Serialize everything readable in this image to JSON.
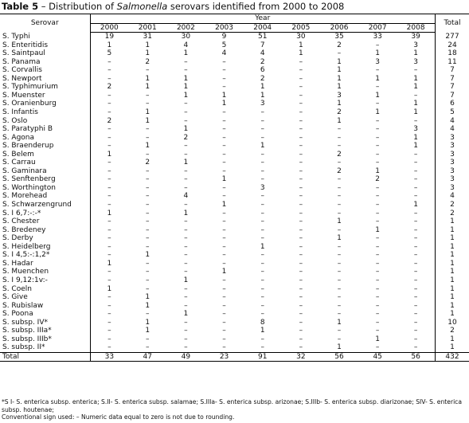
{
  "title": {
    "label": "Table 5",
    "before": "– Distribution of ",
    "italic": "Salmonella",
    "after": " serovars identified from 2000 to 2008"
  },
  "table": {
    "serovar_header": "Serovar",
    "year_header": "Year",
    "total_header": "Total",
    "years": [
      "2000",
      "2001",
      "2002",
      "2003",
      "2004",
      "2005",
      "2006",
      "2007",
      "2008"
    ],
    "rows": [
      [
        "S. Typhi",
        "19",
        "31",
        "30",
        "9",
        "51",
        "30",
        "35",
        "33",
        "39",
        "277"
      ],
      [
        "S. Enteritidis",
        "1",
        "1",
        "4",
        "5",
        "7",
        "1",
        "2",
        "–",
        "3",
        "24"
      ],
      [
        "S. Saintpaul",
        "5",
        "1",
        "1",
        "4",
        "4",
        "1",
        "–",
        "1",
        "1",
        "18"
      ],
      [
        "S. Panama",
        "–",
        "2",
        "–",
        "–",
        "2",
        "–",
        "1",
        "3",
        "3",
        "11"
      ],
      [
        "S. Corvallis",
        "–",
        "–",
        "–",
        "–",
        "6",
        "–",
        "1",
        "–",
        "–",
        "7"
      ],
      [
        "S. Newport",
        "–",
        "1",
        "1",
        "–",
        "2",
        "–",
        "1",
        "1",
        "1",
        "7"
      ],
      [
        "S. Typhimurium",
        "2",
        "1",
        "1",
        "–",
        "1",
        "–",
        "1",
        "–",
        "1",
        "7"
      ],
      [
        "S. Muenster",
        "–",
        "–",
        "1",
        "1",
        "1",
        "–",
        "3",
        "1",
        "–",
        "7"
      ],
      [
        "S. Oranienburg",
        "–",
        "–",
        "–",
        "1",
        "3",
        "–",
        "1",
        "–",
        "1",
        "6"
      ],
      [
        "S. Infantis",
        "–",
        "1",
        "–",
        "–",
        "–",
        "–",
        "2",
        "1",
        "1",
        "5"
      ],
      [
        "S. Oslo",
        "2",
        "1",
        "–",
        "–",
        "–",
        "–",
        "1",
        "–",
        "–",
        "4"
      ],
      [
        "S. Paratyphi B",
        "–",
        "–",
        "1",
        "–",
        "–",
        "–",
        "–",
        "–",
        "3",
        "4"
      ],
      [
        "S. Agona",
        "–",
        "–",
        "2",
        "–",
        "–",
        "–",
        "–",
        "–",
        "1",
        "3"
      ],
      [
        "S. Braenderup",
        "–",
        "1",
        "–",
        "–",
        "1",
        "–",
        "–",
        "–",
        "1",
        "3"
      ],
      [
        "S. Belem",
        "1",
        "–",
        "–",
        "–",
        "–",
        "–",
        "2",
        "–",
        "–",
        "3"
      ],
      [
        "S. Carrau",
        "–",
        "2",
        "1",
        "–",
        "–",
        "–",
        "–",
        "–",
        "–",
        "3"
      ],
      [
        "S. Gaminara",
        "–",
        "–",
        "–",
        "–",
        "–",
        "–",
        "2",
        "1",
        "–",
        "3"
      ],
      [
        "S. Senftenberg",
        "–",
        "–",
        "–",
        "1",
        "–",
        "–",
        "–",
        "2",
        "–",
        "3"
      ],
      [
        "S. Worthington",
        "–",
        "–",
        "–",
        "–",
        "3",
        "–",
        "–",
        "–",
        "–",
        "3"
      ],
      [
        "S. Morehead",
        "–",
        "–",
        "4",
        "–",
        "–",
        "–",
        "–",
        "–",
        "–",
        "4"
      ],
      [
        "S. Schwarzengrund",
        "–",
        "–",
        "–",
        "1",
        "–",
        "–",
        "–",
        "–",
        "1",
        "2"
      ],
      [
        "S. I 6,7:-:-*",
        "1",
        "–",
        "1",
        "–",
        "–",
        "–",
        "–",
        "–",
        "–",
        "2"
      ],
      [
        "S. Chester",
        "–",
        "–",
        "–",
        "–",
        "–",
        "–",
        "1",
        "–",
        "–",
        "1"
      ],
      [
        "S. Bredeney",
        "–",
        "–",
        "–",
        "–",
        "–",
        "–",
        "–",
        "1",
        "–",
        "1"
      ],
      [
        "S. Derby",
        "–",
        "–",
        "–",
        "–",
        "–",
        "–",
        "1",
        "–",
        "–",
        "1"
      ],
      [
        "S. Heidelberg",
        "–",
        "–",
        "–",
        "–",
        "1",
        "–",
        "–",
        "–",
        "–",
        "1"
      ],
      [
        "S. I 4,5:-:1,2*",
        "–",
        "1",
        "–",
        "–",
        "–",
        "–",
        "–",
        "–",
        "–",
        "1"
      ],
      [
        "S. Hadar",
        "1",
        "–",
        "–",
        "–",
        "–",
        "–",
        "–",
        "–",
        "–",
        "1"
      ],
      [
        "S. Muenchen",
        "–",
        "–",
        "–",
        "1",
        "–",
        "–",
        "–",
        "–",
        "–",
        "1"
      ],
      [
        "S. I 9,12:1v:-",
        "–",
        "–",
        "1",
        "–",
        "–",
        "–",
        "–",
        "–",
        "–",
        "1"
      ],
      [
        "S. Coeln",
        "1",
        "–",
        "–",
        "–",
        "–",
        "–",
        "–",
        "–",
        "–",
        "1"
      ],
      [
        "S. Give",
        "–",
        "1",
        "–",
        "–",
        "–",
        "–",
        "–",
        "–",
        "–",
        "1"
      ],
      [
        "S. Rubislaw",
        "–",
        "1",
        "–",
        "–",
        "–",
        "–",
        "–",
        "–",
        "–",
        "1"
      ],
      [
        "S. Poona",
        "–",
        "–",
        "1",
        "–",
        "–",
        "–",
        "–",
        "–",
        "–",
        "1"
      ],
      [
        "S. subsp. IV*",
        "–",
        "1",
        "–",
        "–",
        "8",
        "–",
        "1",
        "–",
        "–",
        "10"
      ],
      [
        "S. subsp. IIIa*",
        "–",
        "1",
        "–",
        "–",
        "1",
        "–",
        "–",
        "–",
        "–",
        "2"
      ],
      [
        "S. subsp. IIIb*",
        "–",
        "–",
        "–",
        "–",
        "–",
        "–",
        "–",
        "1",
        "–",
        "1"
      ],
      [
        "S. subsp. II*",
        "–",
        "–",
        "–",
        "–",
        "–",
        "–",
        "1",
        "–",
        "–",
        "1"
      ]
    ],
    "total_row": [
      "Total",
      "33",
      "47",
      "49",
      "23",
      "91",
      "32",
      "56",
      "45",
      "56",
      "432"
    ]
  },
  "notes": [
    "*S I- S. enterica subsp. enterica; S.II- S. enterica subsp. salamae; S.IIIa- S. enterica subsp. arizonae; S.IIIb- S. enterica subsp. diarizonae; SIV- S. enterica subsp. houtenae;",
    "Conventional sign used: – Numeric data equal to zero is not due to rounding."
  ]
}
